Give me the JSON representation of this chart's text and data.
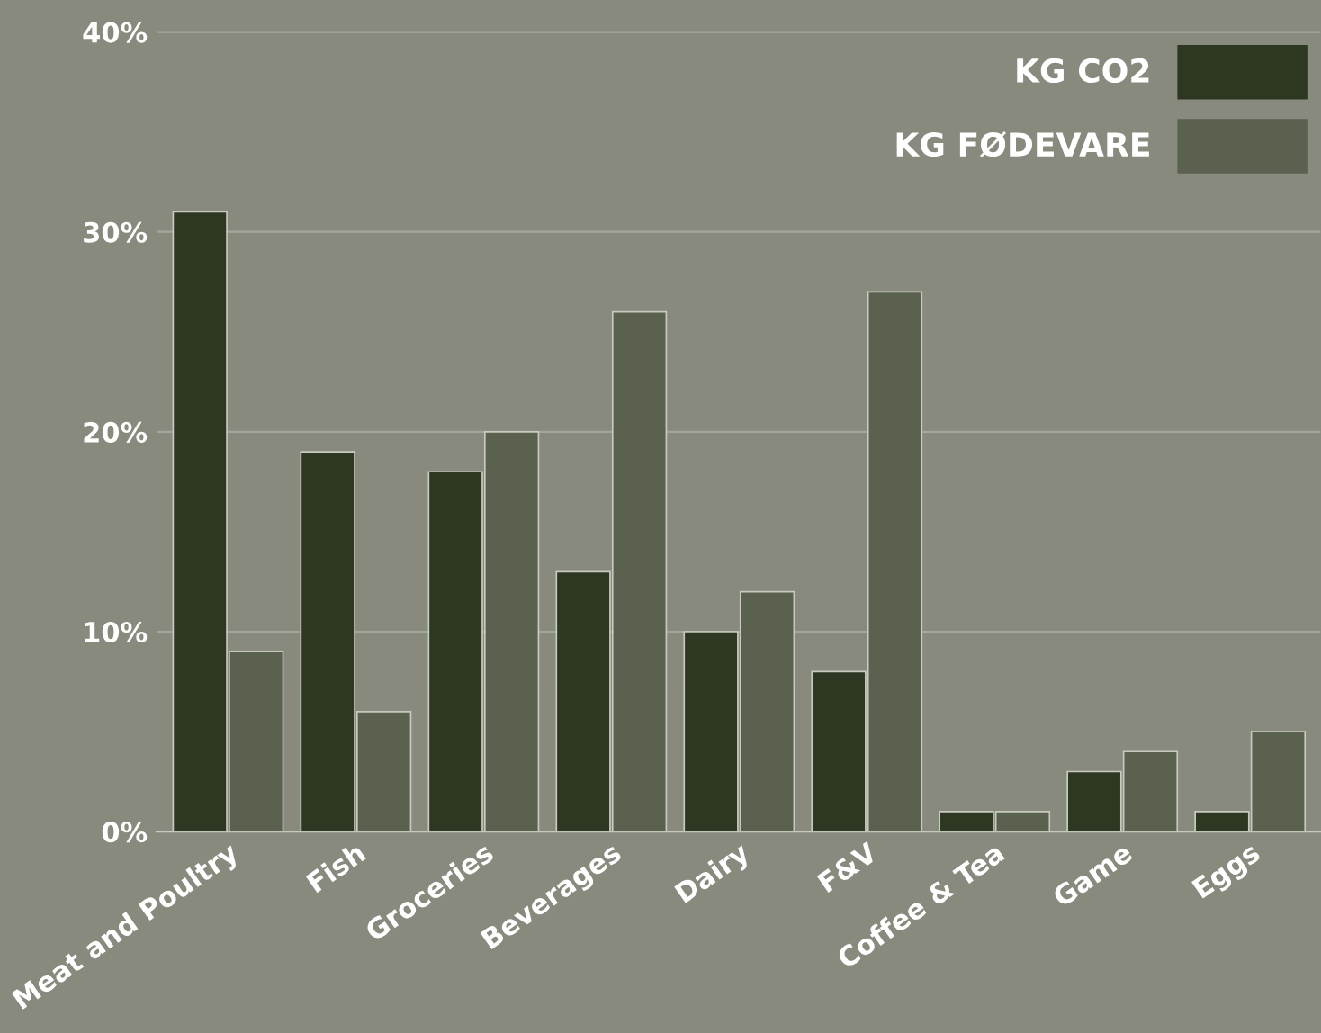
{
  "chart_data": {
    "type": "bar",
    "categories": [
      "Meat and Poultry",
      "Fish",
      "Groceries",
      "Beverages",
      "Dairy",
      "F&V",
      "Coffee & Tea",
      "Game",
      "Eggs"
    ],
    "series": [
      {
        "name": "KG CO2",
        "color": "#2e3722",
        "values": [
          31,
          19,
          18,
          13,
          10,
          8,
          1,
          3,
          1
        ]
      },
      {
        "name": "KG FØDEVARE",
        "color": "#5a614f",
        "values": [
          9,
          6,
          20,
          26,
          12,
          27,
          1,
          4,
          5
        ]
      }
    ],
    "ylim": [
      0,
      40
    ],
    "yticks": [
      {
        "value": 0,
        "label": "0%"
      },
      {
        "value": 10,
        "label": "10%"
      },
      {
        "value": 20,
        "label": "20%"
      },
      {
        "value": 30,
        "label": "30%"
      },
      {
        "value": 40,
        "label": "40%"
      }
    ],
    "grid": "y",
    "legend": "top right"
  }
}
